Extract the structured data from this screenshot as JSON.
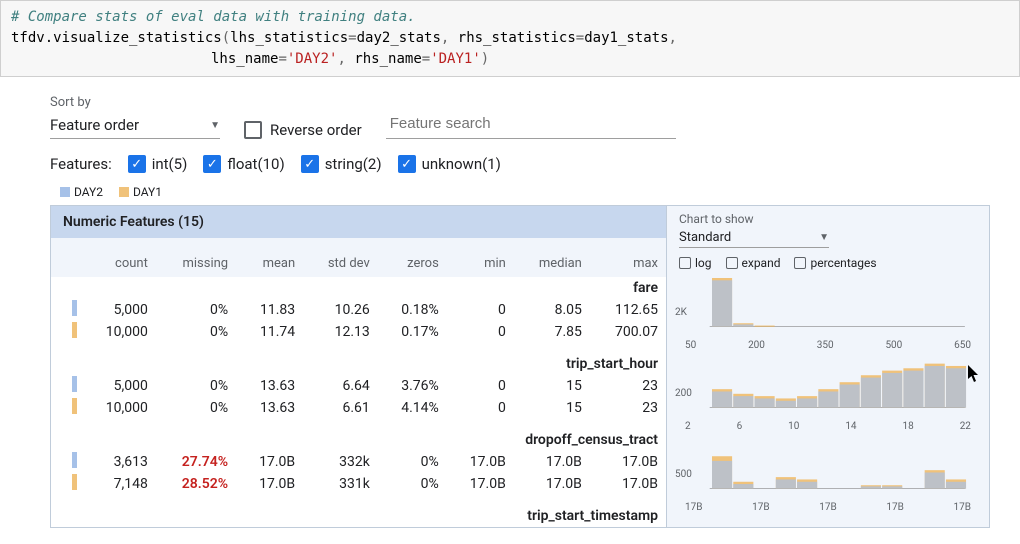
{
  "code": {
    "comment": "# Compare stats of eval data with training data.",
    "fn": "tfdv.visualize_statistics",
    "arg1k": "lhs_statistics",
    "arg1v": "day2_stats",
    "arg2k": "rhs_statistics",
    "arg2v": "day1_stats",
    "arg3k": "lhs_name",
    "arg3v": "'DAY2'",
    "arg4k": "rhs_name",
    "arg4v": "'DAY1'"
  },
  "controls": {
    "sort_label": "Sort by",
    "sort_value": "Feature order",
    "reverse_label": "Reverse order",
    "search_placeholder": "Feature search"
  },
  "filters": {
    "label": "Features:",
    "items": [
      {
        "label": "int(5)"
      },
      {
        "label": "float(10)"
      },
      {
        "label": "string(2)"
      },
      {
        "label": "unknown(1)"
      }
    ]
  },
  "legend": {
    "a": {
      "label": "DAY2",
      "color": "#a6c1e8"
    },
    "b": {
      "label": "DAY1",
      "color": "#f0c27a"
    }
  },
  "section_title": "Numeric Features (15)",
  "columns": [
    "count",
    "missing",
    "mean",
    "std dev",
    "zeros",
    "min",
    "median",
    "max"
  ],
  "chart_controls": {
    "label": "Chart to show",
    "value": "Standard",
    "opts": [
      "log",
      "expand",
      "percentages"
    ]
  },
  "features": [
    {
      "name": "fare",
      "rows": [
        {
          "series": "a",
          "cells": [
            "5,000",
            "0%",
            "11.83",
            "10.26",
            "0.18%",
            "0",
            "8.05",
            "112.65"
          ]
        },
        {
          "series": "b",
          "cells": [
            "10,000",
            "0%",
            "11.74",
            "12.13",
            "0.17%",
            "0",
            "7.85",
            "700.07"
          ]
        }
      ],
      "chart": {
        "ylab": "2K",
        "xticks": [
          "50",
          "200",
          "350",
          "500",
          "650"
        ],
        "bars_a": [
          40,
          2,
          0,
          0,
          0,
          0,
          0,
          0,
          0,
          0,
          0,
          0
        ],
        "bars_b": [
          42,
          3,
          1,
          0,
          0,
          0,
          0,
          0,
          0,
          0,
          0,
          0
        ]
      }
    },
    {
      "name": "trip_start_hour",
      "rows": [
        {
          "series": "a",
          "cells": [
            "5,000",
            "0%",
            "13.63",
            "6.64",
            "3.76%",
            "0",
            "15",
            "23"
          ]
        },
        {
          "series": "b",
          "cells": [
            "10,000",
            "0%",
            "13.63",
            "6.61",
            "4.14%",
            "0",
            "15",
            "23"
          ]
        }
      ],
      "chart": {
        "ylab": "200",
        "xticks": [
          "2",
          "6",
          "10",
          "14",
          "18",
          "22"
        ],
        "bars_a": [
          14,
          10,
          8,
          6,
          8,
          14,
          20,
          26,
          30,
          32,
          36,
          34
        ],
        "bars_b": [
          16,
          12,
          10,
          8,
          10,
          16,
          22,
          28,
          32,
          34,
          38,
          36
        ]
      }
    },
    {
      "name": "dropoff_census_tract",
      "rows": [
        {
          "series": "a",
          "cells": [
            "3,613",
            "27.74%",
            "17.0B",
            "332k",
            "0%",
            "17.0B",
            "17.0B",
            "17.0B"
          ],
          "red_col": 1
        },
        {
          "series": "b",
          "cells": [
            "7,148",
            "28.52%",
            "17.0B",
            "331k",
            "0%",
            "17.0B",
            "17.0B",
            "17.0B"
          ],
          "red_col": 1
        }
      ],
      "chart": {
        "ylab": "500",
        "xticks": [
          "17B",
          "17B",
          "17B",
          "17B",
          "17B"
        ],
        "bars_a": [
          24,
          4,
          0,
          8,
          6,
          0,
          0,
          2,
          2,
          0,
          14,
          6
        ],
        "bars_b": [
          28,
          6,
          0,
          10,
          8,
          0,
          0,
          3,
          3,
          0,
          16,
          8
        ]
      }
    },
    {
      "name": "trip_start_timestamp",
      "rows": []
    }
  ],
  "colors": {
    "series_a": "#a6c1e8",
    "series_b": "#f0c27a",
    "series_b_dark": "#c89b5a"
  }
}
